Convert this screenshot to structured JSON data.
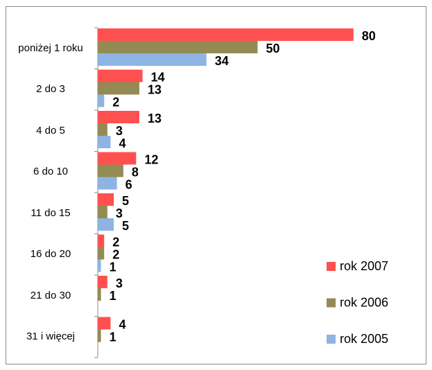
{
  "chart_data": {
    "type": "hbar",
    "categories": [
      "poniżej 1 roku",
      "2 do 3",
      "4 do 5",
      "6 do 10",
      "11 do 15",
      "16 do 20",
      "21 do 30",
      "31 i więcej"
    ],
    "series": [
      {
        "name": "rok 2007",
        "color": "#ff5050",
        "values": [
          80,
          14,
          13,
          12,
          5,
          2,
          3,
          4
        ]
      },
      {
        "name": "rok 2006",
        "color": "#948a54",
        "values": [
          50,
          13,
          3,
          8,
          3,
          2,
          1,
          1
        ]
      },
      {
        "name": "rok 2005",
        "color": "#8eb4e3",
        "values": [
          34,
          2,
          4,
          6,
          5,
          1,
          null,
          null
        ]
      }
    ],
    "legend": "lower right"
  }
}
